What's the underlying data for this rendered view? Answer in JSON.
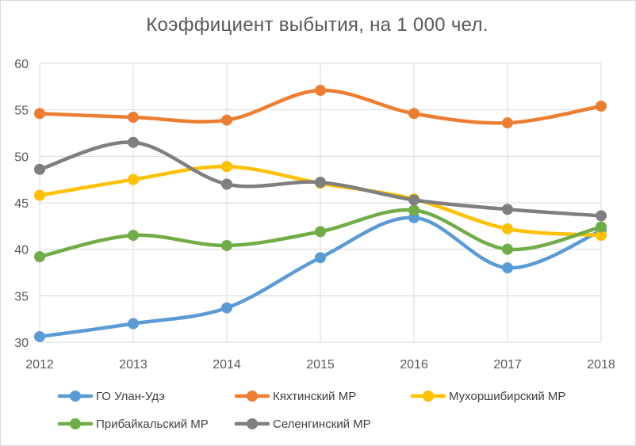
{
  "chart_data": {
    "type": "line",
    "title": "Коэффициент выбытия, на 1 000 чел.",
    "xlabel": "",
    "ylabel": "",
    "x": [
      "2012",
      "2013",
      "2014",
      "2015",
      "2016",
      "2017",
      "2018"
    ],
    "ylim": [
      30,
      60
    ],
    "yticks": [
      "30",
      "35",
      "40",
      "45",
      "50",
      "55",
      "60"
    ],
    "grid": true,
    "legend_position": "bottom",
    "smooth": true,
    "series": [
      {
        "name": "ГО Улан-Удэ",
        "color": "#5b9bd5",
        "values": [
          30.6,
          32.0,
          33.7,
          39.1,
          43.4,
          38.0,
          42.0
        ]
      },
      {
        "name": "Кяхтинский МР",
        "color": "#ed7d31",
        "values": [
          54.6,
          54.2,
          53.9,
          57.1,
          54.6,
          53.6,
          55.4
        ]
      },
      {
        "name": "Мухоршибирский МР",
        "color": "#ffc000",
        "values": [
          45.8,
          47.5,
          48.9,
          47.1,
          45.4,
          42.2,
          41.5
        ]
      },
      {
        "name": "Прибайкальский МР",
        "color": "#70ad47",
        "values": [
          39.2,
          41.5,
          40.4,
          41.9,
          44.2,
          40.0,
          42.4
        ]
      },
      {
        "name": "Селенгинский МР",
        "color": "#7f7f7f",
        "values": [
          48.6,
          51.5,
          47.0,
          47.2,
          45.3,
          44.3,
          43.6
        ]
      }
    ]
  }
}
